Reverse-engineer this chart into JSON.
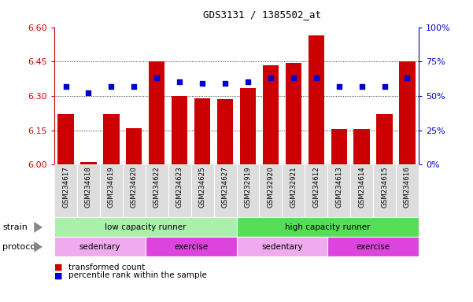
{
  "title": "GDS3131 / 1385502_at",
  "samples": [
    "GSM234617",
    "GSM234618",
    "GSM234619",
    "GSM234620",
    "GSM234622",
    "GSM234623",
    "GSM234625",
    "GSM234627",
    "GSM232919",
    "GSM232920",
    "GSM232921",
    "GSM234612",
    "GSM234613",
    "GSM234614",
    "GSM234615",
    "GSM234616"
  ],
  "bar_values": [
    6.22,
    6.01,
    6.22,
    6.16,
    6.45,
    6.3,
    6.29,
    6.285,
    6.335,
    6.435,
    6.445,
    6.565,
    6.155,
    6.155,
    6.22,
    6.45
  ],
  "dot_values": [
    57,
    52,
    57,
    57,
    63,
    60,
    59,
    59,
    60,
    63,
    63,
    63,
    57,
    57,
    57,
    63
  ],
  "ylim_left": [
    6.0,
    6.6
  ],
  "ylim_right": [
    0,
    100
  ],
  "yticks_left": [
    6.0,
    6.15,
    6.3,
    6.45,
    6.6
  ],
  "yticks_right": [
    0,
    25,
    50,
    75,
    100
  ],
  "ytick_labels_right": [
    "0%",
    "25%",
    "50%",
    "75%",
    "100%"
  ],
  "bar_color": "#cc0000",
  "dot_color": "#0000cc",
  "strain_groups": [
    {
      "label": "low capacity runner",
      "start": 0,
      "end": 8,
      "color": "#aaf0aa"
    },
    {
      "label": "high capacity runner",
      "start": 8,
      "end": 16,
      "color": "#55dd55"
    }
  ],
  "protocol_groups": [
    {
      "label": "sedentary",
      "start": 0,
      "end": 4,
      "color": "#f0aaee"
    },
    {
      "label": "exercise",
      "start": 4,
      "end": 8,
      "color": "#dd44dd"
    },
    {
      "label": "sedentary",
      "start": 8,
      "end": 12,
      "color": "#f0aaee"
    },
    {
      "label": "exercise",
      "start": 12,
      "end": 16,
      "color": "#dd44dd"
    }
  ],
  "strain_label": "strain",
  "protocol_label": "protocol",
  "legend_bar_label": "transformed count",
  "legend_dot_label": "percentile rank within the sample",
  "tick_color_left": "#cc0000",
  "tick_color_right": "#0000cc",
  "bar_base": 6.0,
  "xtick_bg": "#dddddd"
}
